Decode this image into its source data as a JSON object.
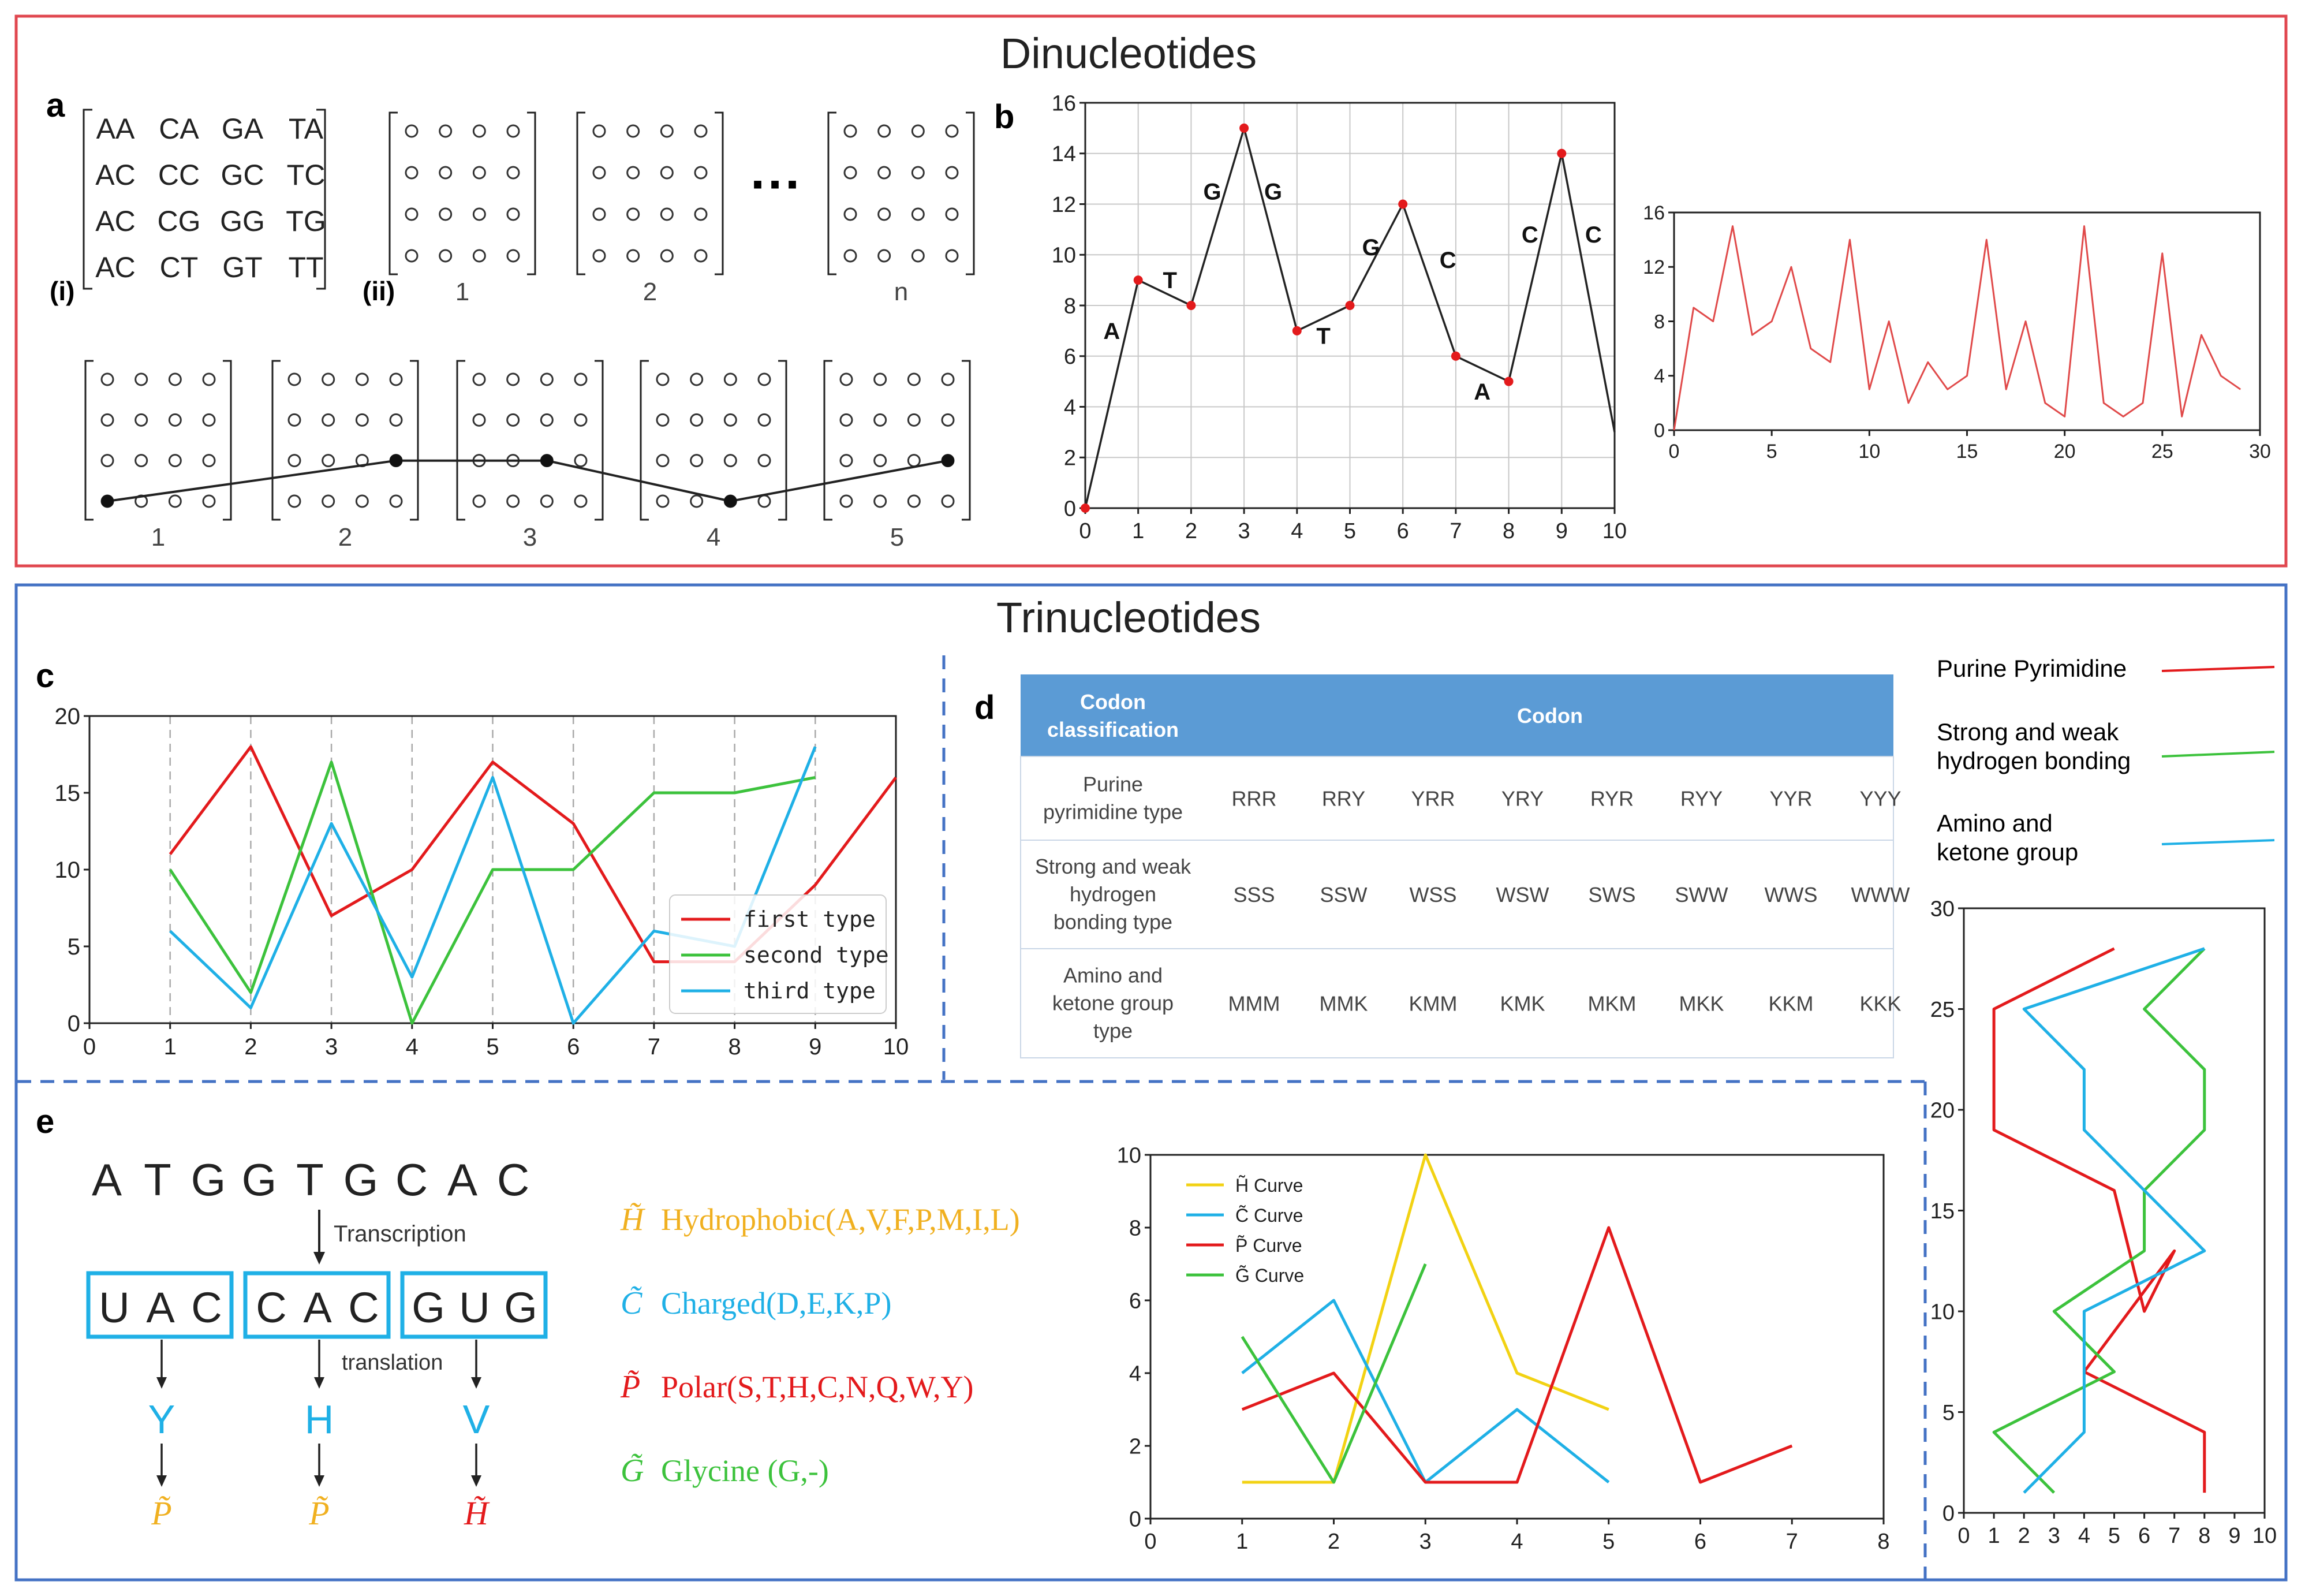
{
  "titles": {
    "dinucleotides": "Dinucleotides",
    "trinucleotides": "Trinucleotides"
  },
  "colors": {
    "dinuc_border": "#e0474f",
    "trinuc_border": "#4472c4",
    "red": "#e31a1c",
    "green": "#3cc23c",
    "cyan": "#1fb0e6",
    "yellow": "#f2d213",
    "orange": "#f0b020",
    "table_header": "#5b9bd5"
  },
  "panel_labels": {
    "a": "a",
    "b": "b",
    "c": "c",
    "d": "d",
    "e": "e"
  },
  "panel_a": {
    "label_i": "(i)",
    "label_ii": "(ii)",
    "matrix_rows": [
      [
        "AA",
        "CA",
        "GA",
        "TA"
      ],
      [
        "AC",
        "CC",
        "GC",
        "TC"
      ],
      [
        "AC",
        "CG",
        "GG",
        "TG"
      ],
      [
        "AC",
        "CT",
        "GT",
        "TT"
      ]
    ],
    "matrix_numbers": [
      "1",
      "2",
      "n"
    ],
    "ellipsis": "···",
    "path_numbers": [
      "1",
      "2",
      "3",
      "4",
      "5"
    ]
  },
  "chart_data": [
    {
      "id": "b-left",
      "type": "line",
      "x": [
        0,
        1,
        2,
        3,
        4,
        5,
        6,
        7,
        8,
        9,
        10
      ],
      "y": [
        0,
        9,
        8,
        15,
        7,
        8,
        12,
        6,
        5,
        14,
        3
      ],
      "point_labels": [
        {
          "text": "A",
          "x": 0.5,
          "y": 7
        },
        {
          "text": "T",
          "x": 1.6,
          "y": 9
        },
        {
          "text": "G",
          "x": 2.4,
          "y": 12.5
        },
        {
          "text": "G",
          "x": 3.55,
          "y": 12.5
        },
        {
          "text": "T",
          "x": 4.5,
          "y": 6.8
        },
        {
          "text": "G",
          "x": 5.4,
          "y": 10.3
        },
        {
          "text": "C",
          "x": 6.85,
          "y": 9.8
        },
        {
          "text": "A",
          "x": 7.5,
          "y": 4.6
        },
        {
          "text": "C",
          "x": 8.4,
          "y": 10.8
        },
        {
          "text": "C",
          "x": 9.6,
          "y": 10.8
        }
      ],
      "xlim": [
        0,
        10
      ],
      "ylim": [
        0,
        16
      ],
      "xticks": [
        "0",
        "1",
        "2",
        "3",
        "4",
        "5",
        "6",
        "7",
        "8",
        "9",
        "10"
      ],
      "yticks": [
        "0",
        "2",
        "4",
        "6",
        "8",
        "10",
        "12",
        "14",
        "16"
      ],
      "grid": true
    },
    {
      "id": "b-right",
      "type": "line",
      "x": [
        0,
        1,
        2,
        3,
        4,
        5,
        6,
        7,
        8,
        9,
        10,
        11,
        12,
        13,
        14,
        15,
        16,
        17,
        18,
        19,
        20,
        21,
        22,
        23,
        24,
        25,
        26,
        27,
        28,
        29
      ],
      "y": [
        0,
        9,
        8,
        15,
        7,
        8,
        12,
        6,
        5,
        14,
        3,
        8,
        2,
        5,
        3,
        4,
        14,
        3,
        8,
        2,
        1,
        15,
        2,
        1,
        2,
        13,
        1,
        7,
        4,
        3
      ],
      "xlim": [
        0,
        30
      ],
      "ylim": [
        0,
        16
      ],
      "xticks": [
        "0",
        "5",
        "10",
        "15",
        "20",
        "25",
        "30"
      ],
      "yticks": [
        "0",
        "4",
        "8",
        "12",
        "16"
      ]
    },
    {
      "id": "c",
      "type": "line",
      "x": [
        1,
        2,
        3,
        4,
        5,
        6,
        7,
        8,
        9,
        10
      ],
      "series": [
        {
          "name": "first type",
          "color": "#e31a1c",
          "values": [
            11,
            18,
            7,
            10,
            17,
            13,
            4,
            4,
            9,
            16
          ]
        },
        {
          "name": "second type",
          "color": "#3cc23c",
          "values": [
            10,
            2,
            17,
            0,
            10,
            10,
            15,
            15,
            16,
            null
          ]
        },
        {
          "name": "third type",
          "color": "#1fb0e6",
          "values": [
            6,
            1,
            13,
            3,
            16,
            0,
            6,
            5,
            18,
            null
          ]
        }
      ],
      "xlim": [
        0,
        10
      ],
      "ylim": [
        0,
        20
      ],
      "xticks": [
        "0",
        "1",
        "2",
        "3",
        "4",
        "5",
        "6",
        "7",
        "8",
        "9",
        "10"
      ],
      "yticks": [
        "0",
        "5",
        "10",
        "15",
        "20"
      ],
      "legend": "bottom-right"
    },
    {
      "id": "e",
      "type": "line",
      "series": [
        {
          "name": "H̃ Curve",
          "color": "#f2d213",
          "x": [
            1,
            2,
            3,
            4,
            5
          ],
          "values": [
            1,
            1,
            10,
            4,
            3
          ]
        },
        {
          "name": "C̃ Curve",
          "color": "#1fb0e6",
          "x": [
            1,
            2,
            3,
            4,
            5
          ],
          "values": [
            4,
            6,
            1,
            3,
            1
          ]
        },
        {
          "name": "P̃ Curve",
          "color": "#e31a1c",
          "x": [
            1,
            2,
            3,
            4,
            5,
            6,
            7
          ],
          "values": [
            3,
            4,
            1,
            1,
            8,
            1,
            2
          ]
        },
        {
          "name": "G̃ Curve",
          "color": "#3cc23c",
          "x": [
            1,
            2,
            3
          ],
          "values": [
            5,
            1,
            7
          ]
        }
      ],
      "xlim": [
        0,
        8
      ],
      "ylim": [
        0,
        10
      ],
      "xticks": [
        "0",
        "1",
        "2",
        "3",
        "4",
        "5",
        "6",
        "7",
        "8"
      ],
      "yticks": [
        "0",
        "2",
        "4",
        "6",
        "8",
        "10"
      ],
      "legend": "top-left"
    },
    {
      "id": "right-vertical",
      "type": "line",
      "series": [
        {
          "name": "Purine Pyrimidine",
          "color": "#e31a1c",
          "points": [
            [
              8,
              1
            ],
            [
              8,
              4
            ],
            [
              4,
              7
            ],
            [
              7,
              13
            ],
            [
              6,
              10
            ],
            [
              5,
              16
            ],
            [
              1,
              19
            ],
            [
              1,
              25
            ],
            [
              5,
              28
            ]
          ]
        },
        {
          "name": "Strong and weak hydrogen bonding",
          "color": "#3cc23c",
          "points": [
            [
              3,
              1
            ],
            [
              1,
              4
            ],
            [
              5,
              7
            ],
            [
              3,
              10
            ],
            [
              6,
              13
            ],
            [
              6,
              16
            ],
            [
              8,
              19
            ],
            [
              8,
              22
            ],
            [
              6,
              25
            ],
            [
              8,
              28
            ]
          ]
        },
        {
          "name": "Amino and ketone group",
          "color": "#1fb0e6",
          "points": [
            [
              2,
              1
            ],
            [
              4,
              4
            ],
            [
              4,
              10
            ],
            [
              8,
              13
            ],
            [
              4,
              19
            ],
            [
              4,
              22
            ],
            [
              2,
              25
            ],
            [
              8,
              28
            ]
          ]
        }
      ],
      "xlim": [
        0,
        10
      ],
      "ylim": [
        0,
        30
      ],
      "xticks": [
        "0",
        "1",
        "2",
        "3",
        "4",
        "5",
        "6",
        "7",
        "8",
        "9",
        "10"
      ],
      "yticks": [
        "0",
        "5",
        "10",
        "15",
        "20",
        "25",
        "30"
      ],
      "legend": "top"
    }
  ],
  "legend_right": {
    "purine": "Purine Pyrimidine",
    "strong_1": "Strong and weak",
    "strong_2": "hydrogen bonding",
    "amino_1": "Amino and",
    "amino_2": "ketone group"
  },
  "table_d": {
    "header_col1_l1": "Codon",
    "header_col1_l2": "classification",
    "header_col2": "Codon",
    "rows": [
      {
        "label": [
          "Purine",
          "pyrimidine type"
        ],
        "codons": [
          "RRR",
          "RRY",
          "YRR",
          "YRY",
          "RYR",
          "RYY",
          "YYR",
          "YYY"
        ]
      },
      {
        "label": [
          "Strong and weak",
          "hydrogen",
          "bonding type"
        ],
        "codons": [
          "SSS",
          "SSW",
          "WSS",
          "WSW",
          "SWS",
          "SWW",
          "WWS",
          "WWW"
        ]
      },
      {
        "label": [
          "Amino and",
          "ketone group",
          "type"
        ],
        "codons": [
          "MMM",
          "MMK",
          "KMM",
          "KMK",
          "MKM",
          "MKK",
          "KKM",
          "KKK"
        ]
      }
    ]
  },
  "panel_e": {
    "dna_letters": [
      "A",
      "T",
      "G",
      "G",
      "T",
      "G",
      "C",
      "A",
      "C"
    ],
    "transcription": "Transcription",
    "translation": "translation",
    "codons": [
      [
        "U",
        "A",
        "C"
      ],
      [
        "C",
        "A",
        "C"
      ],
      [
        "G",
        "U",
        "G"
      ]
    ],
    "amino": [
      "Y",
      "H",
      "V"
    ],
    "amino_class": [
      "P̃",
      "P̃",
      "H̃"
    ],
    "classes": [
      {
        "symbol": "H̃",
        "text": "Hydrophobic(A,V,F,P,M,I,L)"
      },
      {
        "symbol": "C̃",
        "text": "Charged(D,E,K,P)"
      },
      {
        "symbol": "P̃",
        "text": "Polar(S,T,H,C,N,Q,W,Y)"
      },
      {
        "symbol": "G̃",
        "text": "Glycine (G,-)"
      }
    ]
  }
}
